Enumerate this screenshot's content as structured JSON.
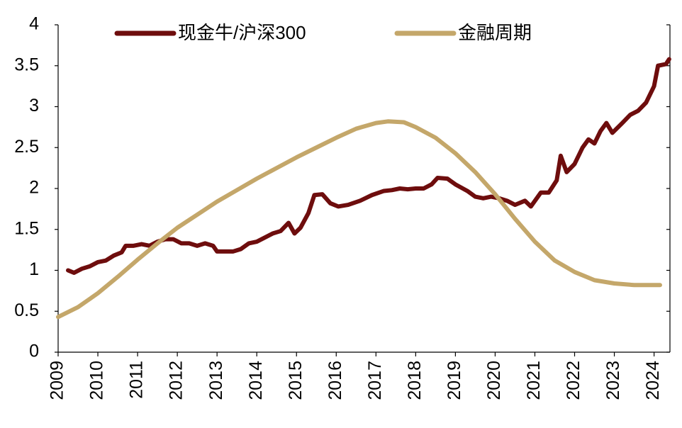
{
  "chart_data": {
    "type": "line",
    "series": [
      {
        "name": "现金牛/沪深300",
        "color": "#6e0d0d",
        "x": [
          2009.25,
          2009.4,
          2009.6,
          2009.8,
          2010.0,
          2010.2,
          2010.4,
          2010.6,
          2010.7,
          2010.9,
          2011.1,
          2011.3,
          2011.5,
          2011.7,
          2011.9,
          2012.1,
          2012.3,
          2012.5,
          2012.7,
          2012.9,
          2013.0,
          2013.2,
          2013.4,
          2013.6,
          2013.8,
          2014.0,
          2014.2,
          2014.4,
          2014.6,
          2014.8,
          2014.95,
          2015.1,
          2015.3,
          2015.45,
          2015.65,
          2015.85,
          2016.05,
          2016.3,
          2016.6,
          2016.9,
          2017.2,
          2017.4,
          2017.6,
          2017.8,
          2018.0,
          2018.2,
          2018.4,
          2018.55,
          2018.8,
          2019.0,
          2019.3,
          2019.5,
          2019.7,
          2019.9,
          2020.1,
          2020.3,
          2020.5,
          2020.75,
          2020.9,
          2021.15,
          2021.35,
          2021.55,
          2021.65,
          2021.8,
          2022.0,
          2022.2,
          2022.35,
          2022.5,
          2022.65,
          2022.8,
          2022.95,
          2023.2,
          2023.4,
          2023.6,
          2023.8,
          2024.0,
          2024.1,
          2024.3,
          2024.38
        ],
        "values": [
          1.0,
          0.97,
          1.02,
          1.05,
          1.1,
          1.12,
          1.18,
          1.22,
          1.3,
          1.3,
          1.32,
          1.3,
          1.35,
          1.38,
          1.38,
          1.33,
          1.33,
          1.3,
          1.33,
          1.3,
          1.23,
          1.23,
          1.23,
          1.26,
          1.33,
          1.35,
          1.4,
          1.45,
          1.48,
          1.58,
          1.45,
          1.52,
          1.7,
          1.92,
          1.93,
          1.82,
          1.78,
          1.8,
          1.85,
          1.92,
          1.97,
          1.98,
          2.0,
          1.99,
          2.0,
          2.0,
          2.05,
          2.13,
          2.12,
          2.05,
          1.97,
          1.9,
          1.88,
          1.9,
          1.88,
          1.85,
          1.8,
          1.85,
          1.78,
          1.95,
          1.95,
          2.1,
          2.4,
          2.2,
          2.3,
          2.5,
          2.6,
          2.55,
          2.7,
          2.8,
          2.68,
          2.8,
          2.9,
          2.95,
          3.05,
          3.25,
          3.5,
          3.52,
          3.58
        ]
      },
      {
        "name": "金融周期",
        "color": "#c4a76a",
        "x": [
          2009,
          2009.5,
          2010,
          2010.5,
          2011,
          2011.5,
          2012,
          2012.5,
          2013,
          2013.5,
          2014,
          2014.5,
          2015,
          2015.5,
          2016,
          2016.5,
          2017,
          2017.3,
          2017.7,
          2018,
          2018.5,
          2019,
          2019.5,
          2020,
          2020.5,
          2021,
          2021.5,
          2022,
          2022.5,
          2023,
          2023.5,
          2024.15
        ],
        "values": [
          0.43,
          0.55,
          0.72,
          0.92,
          1.13,
          1.33,
          1.52,
          1.68,
          1.84,
          1.98,
          2.12,
          2.25,
          2.38,
          2.5,
          2.62,
          2.73,
          2.8,
          2.82,
          2.81,
          2.75,
          2.62,
          2.43,
          2.2,
          1.93,
          1.63,
          1.35,
          1.12,
          0.98,
          0.88,
          0.84,
          0.82,
          0.82
        ]
      }
    ],
    "xlim": [
      2009,
      2024.4
    ],
    "xticks": [
      2009,
      2010,
      2011,
      2012,
      2013,
      2014,
      2015,
      2016,
      2017,
      2018,
      2019,
      2020,
      2021,
      2022,
      2023,
      2024
    ],
    "ylim": [
      0,
      4
    ],
    "yticks": [
      0,
      0.5,
      1,
      1.5,
      2,
      2.5,
      3,
      3.5,
      4
    ]
  }
}
